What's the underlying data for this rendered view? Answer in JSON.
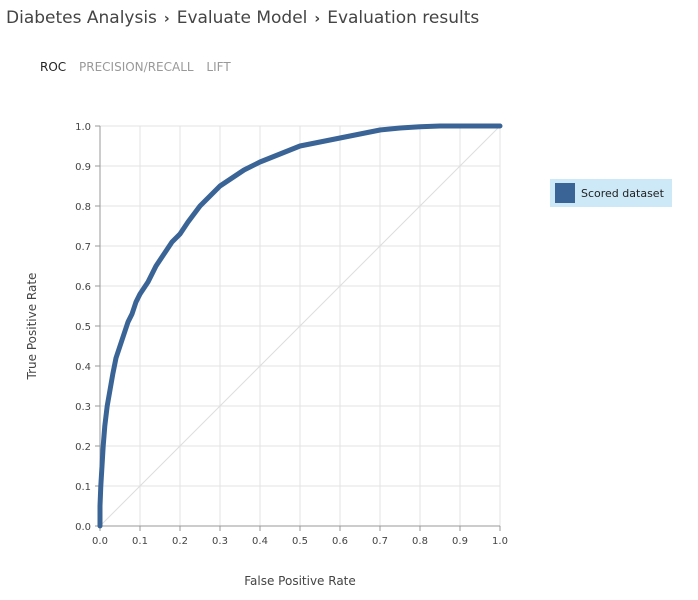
{
  "breadcrumb": {
    "items": [
      "Diabetes Analysis",
      "Evaluate Model",
      "Evaluation results"
    ],
    "separator": "›"
  },
  "tabs": [
    {
      "label": "ROC",
      "active": true
    },
    {
      "label": "PRECISION/RECALL",
      "active": false
    },
    {
      "label": "LIFT",
      "active": false
    }
  ],
  "legend": {
    "label": "Scored dataset",
    "color": "#3a6496"
  },
  "chart_data": {
    "type": "line",
    "title": "",
    "xlabel": "False Positive Rate",
    "ylabel": "True Positive Rate",
    "xlim": [
      0,
      1
    ],
    "ylim": [
      0,
      1
    ],
    "x_ticks": [
      "0.0",
      "0.1",
      "0.2",
      "0.3",
      "0.4",
      "0.5",
      "0.6",
      "0.7",
      "0.8",
      "0.9",
      "1.0"
    ],
    "y_ticks": [
      "0.0",
      "0.1",
      "0.2",
      "0.3",
      "0.4",
      "0.5",
      "0.6",
      "0.7",
      "0.8",
      "0.9",
      "1.0"
    ],
    "grid": true,
    "series": [
      {
        "name": "Scored dataset",
        "color": "#3a6496",
        "points": [
          [
            0.0,
            0.0
          ],
          [
            0.0,
            0.05
          ],
          [
            0.002,
            0.1
          ],
          [
            0.005,
            0.15
          ],
          [
            0.008,
            0.2
          ],
          [
            0.012,
            0.25
          ],
          [
            0.018,
            0.3
          ],
          [
            0.025,
            0.34
          ],
          [
            0.032,
            0.38
          ],
          [
            0.04,
            0.42
          ],
          [
            0.05,
            0.45
          ],
          [
            0.06,
            0.48
          ],
          [
            0.07,
            0.51
          ],
          [
            0.08,
            0.53
          ],
          [
            0.09,
            0.56
          ],
          [
            0.1,
            0.58
          ],
          [
            0.12,
            0.61
          ],
          [
            0.14,
            0.65
          ],
          [
            0.16,
            0.68
          ],
          [
            0.18,
            0.71
          ],
          [
            0.2,
            0.73
          ],
          [
            0.22,
            0.76
          ],
          [
            0.25,
            0.8
          ],
          [
            0.28,
            0.83
          ],
          [
            0.3,
            0.85
          ],
          [
            0.33,
            0.87
          ],
          [
            0.36,
            0.89
          ],
          [
            0.4,
            0.91
          ],
          [
            0.45,
            0.93
          ],
          [
            0.5,
            0.95
          ],
          [
            0.55,
            0.96
          ],
          [
            0.6,
            0.97
          ],
          [
            0.65,
            0.98
          ],
          [
            0.7,
            0.99
          ],
          [
            0.75,
            0.995
          ],
          [
            0.8,
            0.998
          ],
          [
            0.85,
            1.0
          ],
          [
            0.9,
            1.0
          ],
          [
            1.0,
            1.0
          ]
        ]
      }
    ],
    "diagonal": {
      "color": "#dddddd"
    }
  }
}
